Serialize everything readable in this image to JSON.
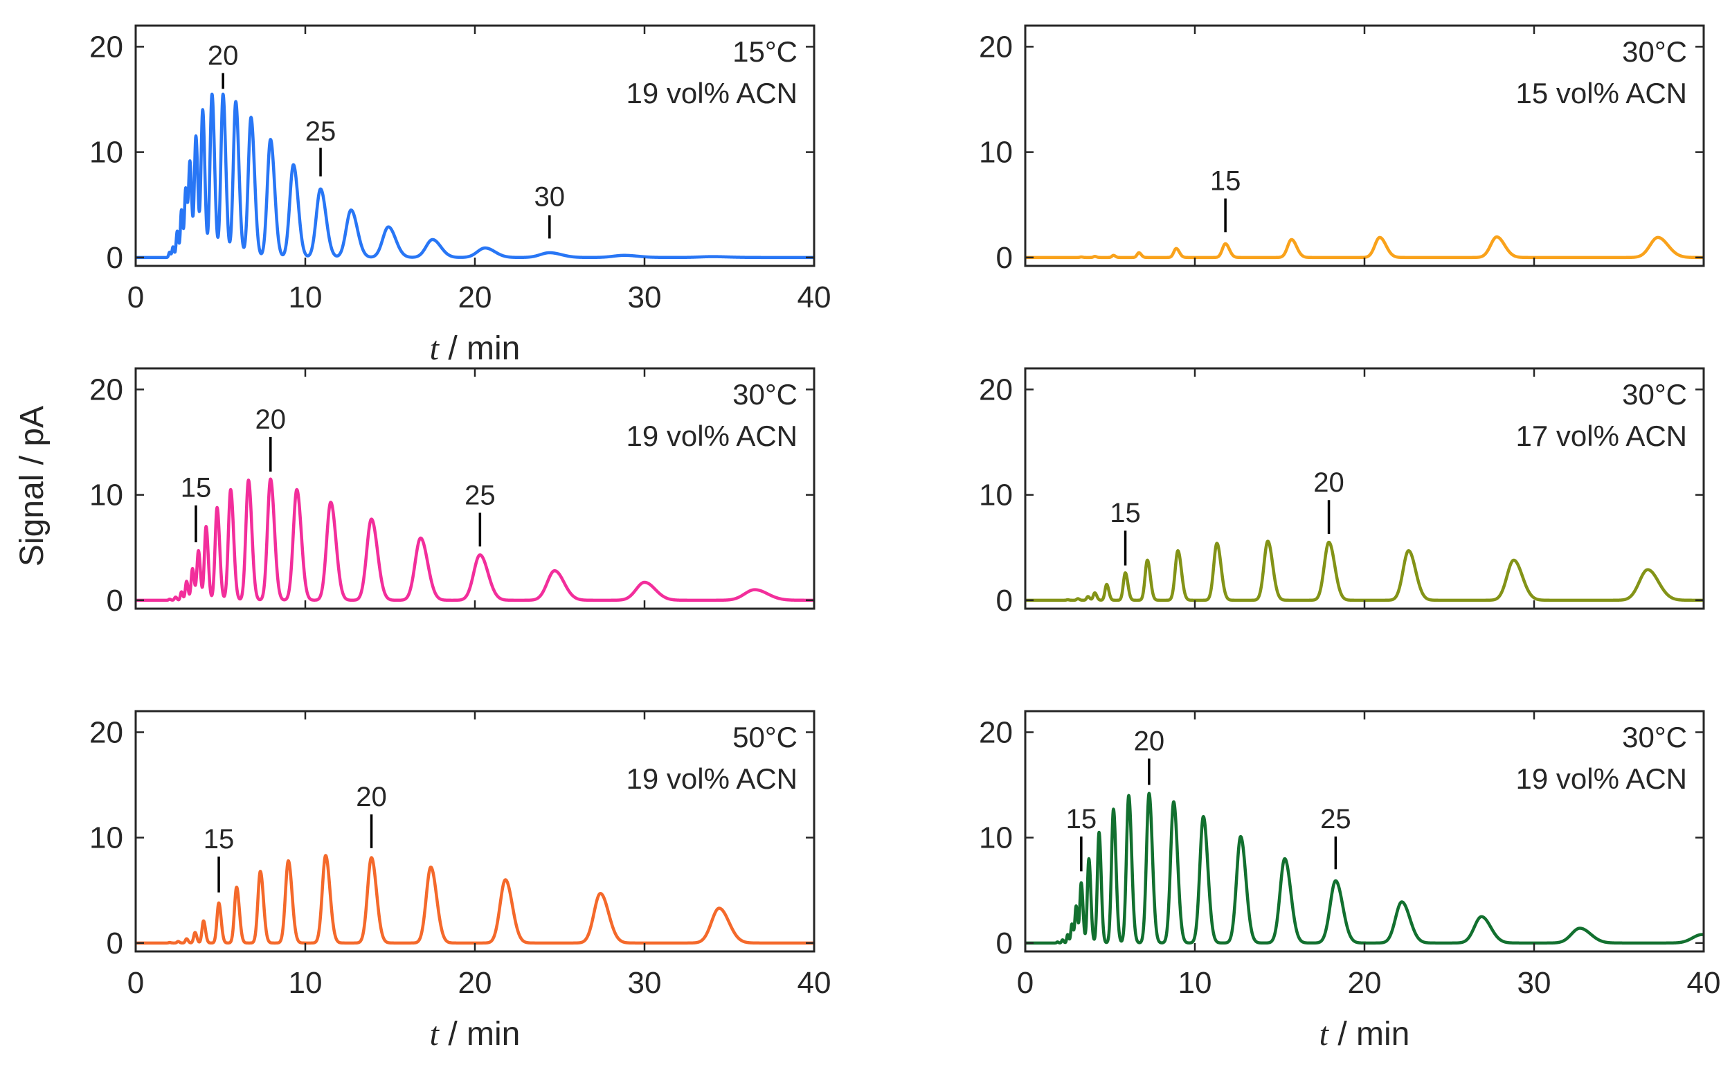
{
  "chart_data": [
    {
      "type": "line",
      "panel": "top-left",
      "title_lines": [
        "15°C",
        "19 vol% ACN"
      ],
      "color": "#2876F5",
      "xlim": [
        0,
        40
      ],
      "ylim": [
        -0.8,
        22
      ],
      "xticks": [
        0,
        10,
        20,
        30,
        40
      ],
      "yticks": [
        0,
        10,
        20
      ],
      "xlabel_t": "t",
      "xlabel_rest": " / min",
      "peaks": [
        [
          2.0,
          0.5,
          0.06
        ],
        [
          2.2,
          1.0,
          0.06
        ],
        [
          2.45,
          2.5,
          0.07
        ],
        [
          2.7,
          4.5,
          0.07
        ],
        [
          2.95,
          6.5,
          0.08
        ],
        [
          3.2,
          9.0,
          0.09
        ],
        [
          3.55,
          11.5,
          0.1
        ],
        [
          3.95,
          14.0,
          0.11
        ],
        [
          4.5,
          15.5,
          0.13
        ],
        [
          5.15,
          15.5,
          0.14
        ],
        [
          5.9,
          14.8,
          0.16
        ],
        [
          6.8,
          13.3,
          0.18
        ],
        [
          7.95,
          11.2,
          0.21
        ],
        [
          9.3,
          8.8,
          0.24
        ],
        [
          10.9,
          6.5,
          0.28
        ],
        [
          12.7,
          4.5,
          0.32
        ],
        [
          14.9,
          2.9,
          0.37
        ],
        [
          17.5,
          1.7,
          0.42
        ],
        [
          20.6,
          0.9,
          0.5
        ],
        [
          24.4,
          0.45,
          0.6
        ],
        [
          28.8,
          0.2,
          0.7
        ],
        [
          34.0,
          0.08,
          0.8
        ]
      ],
      "annotations": [
        {
          "label": "20",
          "x": 5.15,
          "y0": 16.0,
          "y1": 17.5,
          "ty": 18.3
        },
        {
          "label": "25",
          "x": 10.9,
          "y0": 7.7,
          "y1": 10.4,
          "ty": 11.1
        },
        {
          "label": "30",
          "x": 24.4,
          "y0": 1.8,
          "y1": 4.0,
          "ty": 4.9
        }
      ]
    },
    {
      "type": "line",
      "panel": "top-right",
      "title_lines": [
        "30°C",
        "15 vol% ACN"
      ],
      "color": "#F9A21B",
      "xlim": [
        0,
        40
      ],
      "ylim": [
        -0.8,
        22
      ],
      "xticks": [
        0,
        10,
        20,
        30,
        40
      ],
      "yticks": [
        0,
        10,
        20
      ],
      "xlabel_t": "",
      "xlabel_rest": "",
      "peaks": [
        [
          3.3,
          0.05,
          0.08
        ],
        [
          4.1,
          0.1,
          0.09
        ],
        [
          5.2,
          0.2,
          0.1
        ],
        [
          6.7,
          0.45,
          0.12
        ],
        [
          8.9,
          0.85,
          0.16
        ],
        [
          11.8,
          1.3,
          0.2
        ],
        [
          15.7,
          1.7,
          0.26
        ],
        [
          20.9,
          1.9,
          0.32
        ],
        [
          27.8,
          1.95,
          0.4
        ],
        [
          37.3,
          1.9,
          0.52
        ]
      ],
      "annotations": [
        {
          "label": "15",
          "x": 11.8,
          "y0": 2.4,
          "y1": 5.6,
          "ty": 6.4
        }
      ]
    },
    {
      "type": "line",
      "panel": "middle-left",
      "title_lines": [
        "30°C",
        "19 vol% ACN"
      ],
      "color": "#F22E9B",
      "xlim": [
        0,
        40
      ],
      "ylim": [
        -0.8,
        22
      ],
      "xticks": [
        0,
        10,
        20,
        30,
        40
      ],
      "yticks": [
        0,
        10,
        20
      ],
      "xlabel_t": "",
      "xlabel_rest": "",
      "peaks": [
        [
          2.0,
          0.1,
          0.06
        ],
        [
          2.35,
          0.3,
          0.07
        ],
        [
          2.7,
          0.8,
          0.07
        ],
        [
          3.0,
          1.8,
          0.08
        ],
        [
          3.35,
          3.0,
          0.09
        ],
        [
          3.7,
          4.7,
          0.1
        ],
        [
          4.15,
          7.0,
          0.11
        ],
        [
          4.8,
          8.8,
          0.13
        ],
        [
          5.6,
          10.5,
          0.15
        ],
        [
          6.65,
          11.4,
          0.17
        ],
        [
          7.95,
          11.5,
          0.2
        ],
        [
          9.5,
          10.5,
          0.23
        ],
        [
          11.5,
          9.3,
          0.27
        ],
        [
          13.9,
          7.7,
          0.31
        ],
        [
          16.8,
          5.9,
          0.36
        ],
        [
          20.3,
          4.3,
          0.41
        ],
        [
          24.7,
          2.8,
          0.48
        ],
        [
          30.0,
          1.7,
          0.55
        ],
        [
          36.5,
          1.0,
          0.66
        ]
      ],
      "annotations": [
        {
          "label": "15",
          "x": 3.55,
          "y0": 5.5,
          "y1": 9.0,
          "ty": 9.8
        },
        {
          "label": "20",
          "x": 7.95,
          "y0": 12.2,
          "y1": 15.5,
          "ty": 16.3
        },
        {
          "label": "25",
          "x": 20.3,
          "y0": 5.1,
          "y1": 8.3,
          "ty": 9.1
        }
      ]
    },
    {
      "type": "line",
      "panel": "middle-right",
      "title_lines": [
        "30°C",
        "17 vol% ACN"
      ],
      "color": "#839317",
      "xlim": [
        0,
        40
      ],
      "ylim": [
        -0.8,
        22
      ],
      "xticks": [
        0,
        10,
        20,
        30,
        40
      ],
      "yticks": [
        0,
        10,
        20
      ],
      "xlabel_t": "",
      "xlabel_rest": "",
      "peaks": [
        [
          2.5,
          0.05,
          0.07
        ],
        [
          3.1,
          0.15,
          0.08
        ],
        [
          3.7,
          0.35,
          0.09
        ],
        [
          4.1,
          0.7,
          0.1
        ],
        [
          4.8,
          1.5,
          0.11
        ],
        [
          5.9,
          2.6,
          0.13
        ],
        [
          7.2,
          3.8,
          0.15
        ],
        [
          9.0,
          4.7,
          0.18
        ],
        [
          11.3,
          5.4,
          0.21
        ],
        [
          14.3,
          5.6,
          0.25
        ],
        [
          17.9,
          5.5,
          0.3
        ],
        [
          22.6,
          4.7,
          0.36
        ],
        [
          28.8,
          3.8,
          0.44
        ],
        [
          36.7,
          2.9,
          0.55
        ]
      ],
      "annotations": [
        {
          "label": "15",
          "x": 5.9,
          "y0": 3.3,
          "y1": 6.6,
          "ty": 7.4
        },
        {
          "label": "20",
          "x": 17.9,
          "y0": 6.3,
          "y1": 9.5,
          "ty": 10.3
        }
      ]
    },
    {
      "type": "line",
      "panel": "bottom-left",
      "title_lines": [
        "50°C",
        "19 vol% ACN"
      ],
      "color": "#F4692B",
      "xlim": [
        0,
        40
      ],
      "ylim": [
        -0.8,
        22
      ],
      "xticks": [
        0,
        10,
        20,
        30,
        40
      ],
      "yticks": [
        0,
        10,
        20
      ],
      "xlabel_t": "t",
      "xlabel_rest": " / min",
      "peaks": [
        [
          2.0,
          0.05,
          0.06
        ],
        [
          2.5,
          0.15,
          0.07
        ],
        [
          3.0,
          0.4,
          0.08
        ],
        [
          3.5,
          1.0,
          0.09
        ],
        [
          4.0,
          2.1,
          0.1
        ],
        [
          4.9,
          3.8,
          0.12
        ],
        [
          5.95,
          5.3,
          0.14
        ],
        [
          7.35,
          6.8,
          0.16
        ],
        [
          9.0,
          7.8,
          0.19
        ],
        [
          11.2,
          8.3,
          0.22
        ],
        [
          13.9,
          8.1,
          0.26
        ],
        [
          17.4,
          7.2,
          0.3
        ],
        [
          21.8,
          6.0,
          0.35
        ],
        [
          27.4,
          4.7,
          0.42
        ],
        [
          34.4,
          3.3,
          0.5
        ]
      ],
      "annotations": [
        {
          "label": "15",
          "x": 4.9,
          "y0": 4.8,
          "y1": 8.2,
          "ty": 9.0
        },
        {
          "label": "20",
          "x": 13.9,
          "y0": 9.0,
          "y1": 12.2,
          "ty": 13.0
        }
      ]
    },
    {
      "type": "line",
      "panel": "bottom-right",
      "title_lines": [
        "30°C",
        "19 vol% ACN"
      ],
      "color": "#12702F",
      "xlim": [
        0,
        40
      ],
      "ylim": [
        -0.8,
        22
      ],
      "xticks": [
        0,
        10,
        20,
        30,
        40
      ],
      "yticks": [
        0,
        10,
        20
      ],
      "xlabel_t": "t",
      "xlabel_rest": " / min",
      "peaks": [
        [
          1.9,
          0.1,
          0.05
        ],
        [
          2.2,
          0.3,
          0.06
        ],
        [
          2.5,
          0.8,
          0.06
        ],
        [
          2.75,
          1.8,
          0.07
        ],
        [
          3.0,
          3.5,
          0.08
        ],
        [
          3.3,
          5.7,
          0.09
        ],
        [
          3.75,
          8.0,
          0.1
        ],
        [
          4.35,
          10.5,
          0.11
        ],
        [
          5.2,
          12.7,
          0.13
        ],
        [
          6.1,
          14.0,
          0.15
        ],
        [
          7.3,
          14.2,
          0.17
        ],
        [
          8.75,
          13.4,
          0.2
        ],
        [
          10.5,
          12.0,
          0.23
        ],
        [
          12.7,
          10.1,
          0.27
        ],
        [
          15.3,
          8.0,
          0.31
        ],
        [
          18.3,
          5.9,
          0.36
        ],
        [
          22.2,
          3.9,
          0.41
        ],
        [
          26.9,
          2.5,
          0.47
        ],
        [
          32.7,
          1.4,
          0.55
        ],
        [
          39.9,
          0.8,
          0.62
        ]
      ],
      "annotations": [
        {
          "label": "15",
          "x": 3.3,
          "y0": 6.8,
          "y1": 10.1,
          "ty": 10.9
        },
        {
          "label": "20",
          "x": 7.3,
          "y0": 15.0,
          "y1": 17.5,
          "ty": 18.3
        },
        {
          "label": "25",
          "x": 18.3,
          "y0": 7.0,
          "y1": 10.1,
          "ty": 10.9
        }
      ]
    }
  ],
  "figure": {
    "ylabel": "Signal / pA"
  }
}
